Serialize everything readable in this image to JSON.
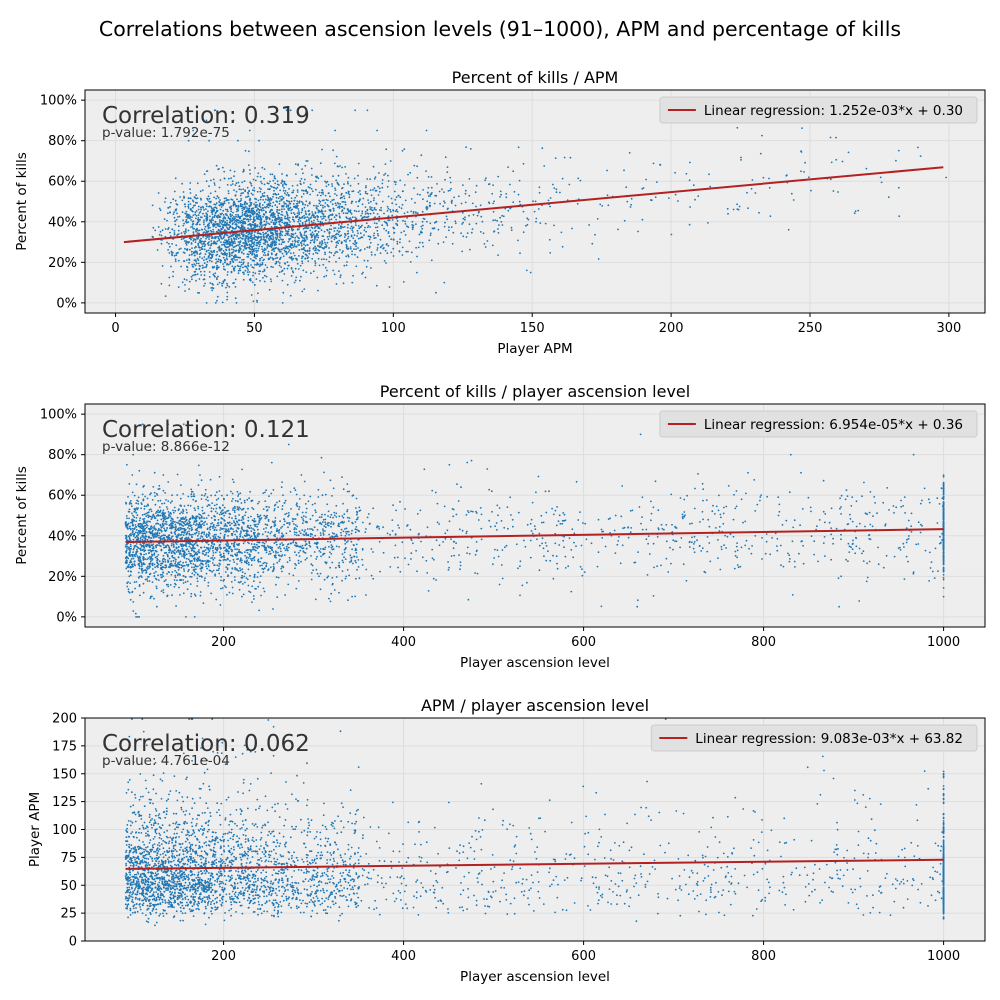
{
  "figure": {
    "title": "Correlations between ascension levels (91–1000), APM and percentage of kills"
  },
  "colors": {
    "scatter": "#1f77b4",
    "regression": "#b22222",
    "axes_background": "#eeeeee",
    "grid": "#dddddd"
  },
  "chart_data": [
    {
      "type": "scatter",
      "title": "Percent of kills / APM",
      "xlabel": "Player APM",
      "ylabel": "Percent of kills",
      "xlim": [
        -11,
        313
      ],
      "ylim": [
        -5,
        105
      ],
      "xticks": [
        0,
        50,
        100,
        150,
        200,
        250,
        300
      ],
      "xtick_labels": [
        "0",
        "50",
        "100",
        "150",
        "200",
        "250",
        "300"
      ],
      "yticks": [
        0,
        20,
        40,
        60,
        80,
        100
      ],
      "ytick_labels": [
        "0%",
        "20%",
        "40%",
        "60%",
        "80%",
        "100%"
      ],
      "grid": true,
      "legend_placement": "top-right",
      "correlation_text": "Correlation: 0.319",
      "pvalue_text": "p-value: 1.792e-75",
      "regression": {
        "label": "Linear regression: 1.252e-03*x + 0.30",
        "slope": 0.1252,
        "intercept": 29.6,
        "x_start": 3,
        "x_end": 298
      },
      "scatter_summary": {
        "x_main_range": [
          15,
          160
        ],
        "x_center": 52,
        "y_center": 36,
        "y_spread": 12,
        "approx_points": 3500
      }
    },
    {
      "type": "scatter",
      "title": "Percent of kills / player ascension level",
      "xlabel": "Player ascension level",
      "ylabel": "Percent of kills",
      "xlim": [
        46,
        1046
      ],
      "ylim": [
        -5,
        105
      ],
      "xticks": [
        200,
        400,
        600,
        800,
        1000
      ],
      "xtick_labels": [
        "200",
        "400",
        "600",
        "800",
        "1000"
      ],
      "yticks": [
        0,
        20,
        40,
        60,
        80,
        100
      ],
      "ytick_labels": [
        "0%",
        "20%",
        "40%",
        "60%",
        "80%",
        "100%"
      ],
      "grid": true,
      "legend_placement": "top-right",
      "correlation_text": "Correlation: 0.121",
      "pvalue_text": "p-value: 8.866e-12",
      "regression": {
        "label": "Linear regression: 6.954e-05*x + 0.36",
        "slope": 0.006954,
        "intercept": 36.3,
        "x_start": 91,
        "x_end": 1000
      },
      "scatter_summary": {
        "x_range": [
          91,
          1000
        ],
        "dense_region": [
          91,
          320
        ],
        "vertical_cluster_at": 1000,
        "y_center": 38,
        "y_spread": 12,
        "approx_points": 3500
      }
    },
    {
      "type": "scatter",
      "title": "APM / player ascension level",
      "xlabel": "Player ascension level",
      "ylabel": "Player APM",
      "xlim": [
        46,
        1046
      ],
      "ylim": [
        0,
        200
      ],
      "xticks": [
        200,
        400,
        600,
        800,
        1000
      ],
      "xtick_labels": [
        "200",
        "400",
        "600",
        "800",
        "1000"
      ],
      "yticks": [
        0,
        25,
        50,
        75,
        100,
        125,
        150,
        175,
        200
      ],
      "ytick_labels": [
        "0",
        "25",
        "50",
        "75",
        "100",
        "125",
        "150",
        "175",
        "200"
      ],
      "grid": true,
      "legend_placement": "top-right",
      "correlation_text": "Correlation: 0.062",
      "pvalue_text": "p-value: 4.761e-04",
      "regression": {
        "label": "Linear regression: 9.083e-03*x + 63.82",
        "slope": 0.009083,
        "intercept": 63.82,
        "x_start": 91,
        "x_end": 1000
      },
      "scatter_summary": {
        "x_range": [
          91,
          1000
        ],
        "dense_region": [
          91,
          320
        ],
        "vertical_cluster_at": 1000,
        "y_center": 60,
        "y_spread": 30,
        "approx_points": 3500
      }
    }
  ]
}
